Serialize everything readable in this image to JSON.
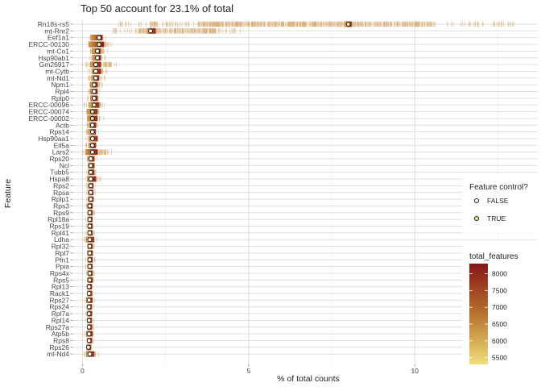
{
  "chart_data": {
    "type": "boxplot",
    "title": "Top 50 account for 23.1% of total",
    "xlabel": "% of total counts",
    "ylabel": "Feature",
    "xlim": [
      -0.3,
      13.7
    ],
    "x_ticks": [
      0,
      5,
      10
    ],
    "grid": true,
    "features": [
      {
        "name": "Rn18s-rs5",
        "median": 8.0,
        "q1": 7.9,
        "q3": 8.1,
        "rug_min": 1.1,
        "rug_max": 13.0,
        "control": true
      },
      {
        "name": "mt-Rnr2",
        "median": 2.05,
        "q1": 1.95,
        "q3": 2.2,
        "rug_min": 0.9,
        "rug_max": 4.8,
        "control": false
      },
      {
        "name": "Eef1a1",
        "median": 0.5,
        "q1": 0.25,
        "q3": 0.6,
        "rug_min": 0.2,
        "rug_max": 0.75,
        "control": false
      },
      {
        "name": "ERCC-00130",
        "median": 0.5,
        "q1": 0.2,
        "q3": 0.65,
        "rug_min": 0.1,
        "rug_max": 0.9,
        "control": true
      },
      {
        "name": "mt-Co1",
        "median": 0.45,
        "q1": 0.3,
        "q3": 0.55,
        "rug_min": 0.15,
        "rug_max": 0.8,
        "control": false
      },
      {
        "name": "Hsp90ab1",
        "median": 0.45,
        "q1": 0.3,
        "q3": 0.55,
        "rug_min": 0.2,
        "rug_max": 0.7,
        "control": false
      },
      {
        "name": "Gm26917",
        "median": 0.4,
        "q1": 0.25,
        "q3": 0.55,
        "rug_min": 0.0,
        "rug_max": 1.1,
        "control": false
      },
      {
        "name": "mt-Cytb",
        "median": 0.4,
        "q1": 0.3,
        "q3": 0.55,
        "rug_min": 0.15,
        "rug_max": 0.75,
        "control": false
      },
      {
        "name": "mt-Nd1",
        "median": 0.4,
        "q1": 0.3,
        "q3": 0.5,
        "rug_min": 0.15,
        "rug_max": 0.7,
        "control": false
      },
      {
        "name": "Npm1",
        "median": 0.35,
        "q1": 0.25,
        "q3": 0.45,
        "rug_min": 0.15,
        "rug_max": 0.6,
        "control": false
      },
      {
        "name": "Rpl4",
        "median": 0.35,
        "q1": 0.25,
        "q3": 0.45,
        "rug_min": 0.15,
        "rug_max": 0.55,
        "control": false
      },
      {
        "name": "Rplp0",
        "median": 0.35,
        "q1": 0.25,
        "q3": 0.45,
        "rug_min": 0.15,
        "rug_max": 0.55,
        "control": false
      },
      {
        "name": "ERCC-00096",
        "median": 0.35,
        "q1": 0.2,
        "q3": 0.5,
        "rug_min": 0.05,
        "rug_max": 0.7,
        "control": true
      },
      {
        "name": "ERCC-00074",
        "median": 0.3,
        "q1": 0.15,
        "q3": 0.45,
        "rug_min": 0.05,
        "rug_max": 0.6,
        "control": true
      },
      {
        "name": "ERCC-00002",
        "median": 0.3,
        "q1": 0.15,
        "q3": 0.45,
        "rug_min": 0.05,
        "rug_max": 0.65,
        "control": true
      },
      {
        "name": "Actb",
        "median": 0.3,
        "q1": 0.2,
        "q3": 0.4,
        "rug_min": 0.1,
        "rug_max": 0.55,
        "control": false
      },
      {
        "name": "Rps14",
        "median": 0.3,
        "q1": 0.2,
        "q3": 0.4,
        "rug_min": 0.1,
        "rug_max": 0.5,
        "control": false
      },
      {
        "name": "Hsp90aa1",
        "median": 0.3,
        "q1": 0.2,
        "q3": 0.45,
        "rug_min": 0.1,
        "rug_max": 0.55,
        "control": false
      },
      {
        "name": "Eif5a",
        "median": 0.3,
        "q1": 0.2,
        "q3": 0.4,
        "rug_min": 0.1,
        "rug_max": 0.5,
        "control": false
      },
      {
        "name": "Lars2",
        "median": 0.3,
        "q1": 0.1,
        "q3": 0.45,
        "rug_min": 0.0,
        "rug_max": 0.9,
        "control": false
      },
      {
        "name": "Rps20",
        "median": 0.25,
        "q1": 0.18,
        "q3": 0.35,
        "rug_min": 0.1,
        "rug_max": 0.45,
        "control": false
      },
      {
        "name": "Ncl",
        "median": 0.25,
        "q1": 0.18,
        "q3": 0.35,
        "rug_min": 0.1,
        "rug_max": 0.45,
        "control": false
      },
      {
        "name": "Tubb5",
        "median": 0.25,
        "q1": 0.18,
        "q3": 0.35,
        "rug_min": 0.1,
        "rug_max": 0.45,
        "control": false
      },
      {
        "name": "Hspa8",
        "median": 0.25,
        "q1": 0.15,
        "q3": 0.4,
        "rug_min": 0.05,
        "rug_max": 0.55,
        "control": false
      },
      {
        "name": "Rps2",
        "median": 0.25,
        "q1": 0.18,
        "q3": 0.32,
        "rug_min": 0.1,
        "rug_max": 0.4,
        "control": false
      },
      {
        "name": "Rpsa",
        "median": 0.25,
        "q1": 0.18,
        "q3": 0.32,
        "rug_min": 0.1,
        "rug_max": 0.4,
        "control": false
      },
      {
        "name": "Rplp1",
        "median": 0.25,
        "q1": 0.18,
        "q3": 0.32,
        "rug_min": 0.1,
        "rug_max": 0.4,
        "control": false
      },
      {
        "name": "Rps3",
        "median": 0.22,
        "q1": 0.16,
        "q3": 0.3,
        "rug_min": 0.1,
        "rug_max": 0.38,
        "control": false
      },
      {
        "name": "Rps9",
        "median": 0.22,
        "q1": 0.16,
        "q3": 0.3,
        "rug_min": 0.1,
        "rug_max": 0.38,
        "control": false
      },
      {
        "name": "Rpl18a",
        "median": 0.22,
        "q1": 0.16,
        "q3": 0.3,
        "rug_min": 0.1,
        "rug_max": 0.38,
        "control": false
      },
      {
        "name": "Rps19",
        "median": 0.22,
        "q1": 0.16,
        "q3": 0.3,
        "rug_min": 0.1,
        "rug_max": 0.38,
        "control": false
      },
      {
        "name": "Rpl41",
        "median": 0.22,
        "q1": 0.16,
        "q3": 0.3,
        "rug_min": 0.1,
        "rug_max": 0.38,
        "control": false
      },
      {
        "name": "Ldha",
        "median": 0.22,
        "q1": 0.12,
        "q3": 0.35,
        "rug_min": 0.05,
        "rug_max": 0.45,
        "control": false
      },
      {
        "name": "Rpl32",
        "median": 0.22,
        "q1": 0.16,
        "q3": 0.3,
        "rug_min": 0.1,
        "rug_max": 0.38,
        "control": false
      },
      {
        "name": "Rpl7",
        "median": 0.22,
        "q1": 0.16,
        "q3": 0.3,
        "rug_min": 0.1,
        "rug_max": 0.38,
        "control": false
      },
      {
        "name": "Pfn1",
        "median": 0.22,
        "q1": 0.16,
        "q3": 0.3,
        "rug_min": 0.1,
        "rug_max": 0.38,
        "control": false
      },
      {
        "name": "Ppia",
        "median": 0.22,
        "q1": 0.16,
        "q3": 0.3,
        "rug_min": 0.1,
        "rug_max": 0.38,
        "control": false
      },
      {
        "name": "Rps4x",
        "median": 0.22,
        "q1": 0.16,
        "q3": 0.3,
        "rug_min": 0.1,
        "rug_max": 0.38,
        "control": false
      },
      {
        "name": "Rps5",
        "median": 0.22,
        "q1": 0.16,
        "q3": 0.3,
        "rug_min": 0.1,
        "rug_max": 0.38,
        "control": false
      },
      {
        "name": "Rpl13",
        "median": 0.2,
        "q1": 0.15,
        "q3": 0.28,
        "rug_min": 0.1,
        "rug_max": 0.35,
        "control": false
      },
      {
        "name": "Rack1",
        "median": 0.2,
        "q1": 0.15,
        "q3": 0.28,
        "rug_min": 0.1,
        "rug_max": 0.35,
        "control": false
      },
      {
        "name": "Rps27",
        "median": 0.2,
        "q1": 0.12,
        "q3": 0.3,
        "rug_min": 0.05,
        "rug_max": 0.38,
        "control": false
      },
      {
        "name": "Rps24",
        "median": 0.2,
        "q1": 0.15,
        "q3": 0.28,
        "rug_min": 0.1,
        "rug_max": 0.35,
        "control": false
      },
      {
        "name": "Rpl7a",
        "median": 0.2,
        "q1": 0.15,
        "q3": 0.28,
        "rug_min": 0.1,
        "rug_max": 0.35,
        "control": false
      },
      {
        "name": "Rpl14",
        "median": 0.2,
        "q1": 0.15,
        "q3": 0.28,
        "rug_min": 0.1,
        "rug_max": 0.35,
        "control": false
      },
      {
        "name": "Rps27a",
        "median": 0.2,
        "q1": 0.15,
        "q3": 0.28,
        "rug_min": 0.1,
        "rug_max": 0.35,
        "control": false
      },
      {
        "name": "Atp5b",
        "median": 0.2,
        "q1": 0.12,
        "q3": 0.3,
        "rug_min": 0.05,
        "rug_max": 0.4,
        "control": false
      },
      {
        "name": "Rps8",
        "median": 0.2,
        "q1": 0.15,
        "q3": 0.28,
        "rug_min": 0.1,
        "rug_max": 0.35,
        "control": false
      },
      {
        "name": "Rps26",
        "median": 0.18,
        "q1": 0.13,
        "q3": 0.25,
        "rug_min": 0.08,
        "rug_max": 0.32,
        "control": false
      },
      {
        "name": "mt-Nd4",
        "median": 0.22,
        "q1": 0.12,
        "q3": 0.35,
        "rug_min": 0.05,
        "rug_max": 0.5,
        "control": false
      }
    ],
    "legend_control": {
      "title": "Feature control?",
      "items": [
        {
          "label": "FALSE",
          "fill": "#ffffff"
        },
        {
          "label": "TRUE",
          "fill": "#f3e6a8"
        }
      ]
    },
    "legend_colorbar": {
      "title": "total_features",
      "ticks": [
        5500,
        6000,
        6500,
        7000,
        7500,
        8000
      ],
      "range": [
        5300,
        8300
      ],
      "color_low": "#efdf7a",
      "color_mid": "#b8722e",
      "color_high": "#861616"
    },
    "colors": {
      "panel_bg": "#ffffff",
      "grid_major": "#dcdcdc",
      "grid_minor": "#eeeeee",
      "rug": "#d29a55",
      "box": "#a65a2a",
      "median_point_edge": "#111111"
    }
  }
}
